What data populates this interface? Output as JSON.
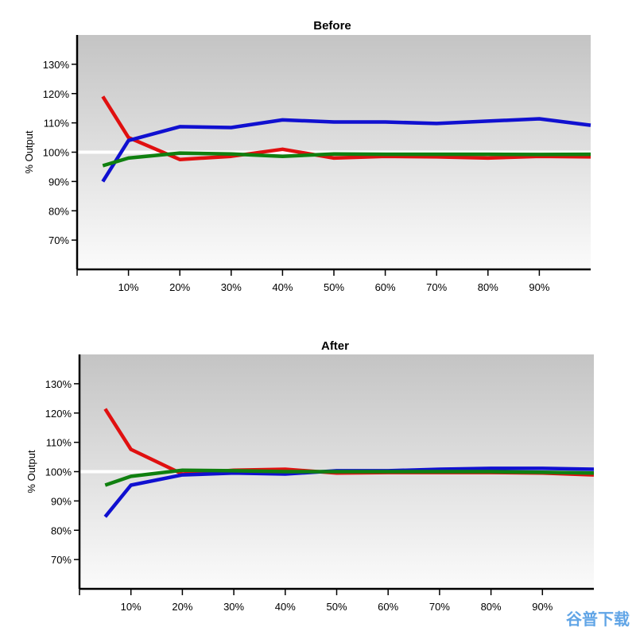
{
  "watermark": "谷普下载",
  "chart_data": [
    {
      "type": "line",
      "title": "Before",
      "ylabel": "% Output",
      "xlabel": "",
      "x": [
        5,
        10,
        20,
        30,
        40,
        50,
        60,
        70,
        80,
        90,
        100
      ],
      "xticks": [
        "10%",
        "20%",
        "30%",
        "40%",
        "50%",
        "60%",
        "70%",
        "80%",
        "90%"
      ],
      "xlim": [
        0,
        100
      ],
      "yticks": [
        "70%",
        "80%",
        "90%",
        "100%",
        "110%",
        "120%",
        "130%"
      ],
      "ylim": [
        60,
        140
      ],
      "reference_line": 100,
      "series": [
        {
          "color": "#e01010",
          "values": [
            119,
            105,
            97.5,
            98.6,
            101,
            98,
            98.6,
            98.4,
            98,
            98.6,
            98.4
          ]
        },
        {
          "color": "#1010d0",
          "values": [
            90,
            104,
            108.7,
            108.4,
            111,
            110.3,
            110.3,
            109.8,
            110.6,
            111.4,
            109.2
          ]
        },
        {
          "color": "#108010",
          "values": [
            95.4,
            98,
            99.7,
            99.4,
            98.6,
            99.4,
            99.3,
            99.3,
            99.3,
            99.2,
            99.3
          ]
        }
      ]
    },
    {
      "type": "line",
      "title": "After",
      "ylabel": "% Output",
      "xlabel": "",
      "x": [
        5,
        10,
        20,
        30,
        40,
        50,
        60,
        70,
        80,
        90,
        100
      ],
      "xticks": [
        "10%",
        "20%",
        "30%",
        "40%",
        "50%",
        "60%",
        "70%",
        "80%",
        "90%"
      ],
      "xlim": [
        0,
        100
      ],
      "yticks": [
        "70%",
        "80%",
        "90%",
        "100%",
        "110%",
        "120%",
        "130%"
      ],
      "ylim": [
        60,
        140
      ],
      "reference_line": 100,
      "series": [
        {
          "color": "#e01010",
          "values": [
            121.4,
            107.6,
            99.2,
            100.5,
            100.8,
            99.5,
            99.7,
            99.7,
            99.7,
            99.5,
            98.9
          ]
        },
        {
          "color": "#1010d0",
          "values": [
            84.6,
            95.4,
            98.9,
            99.5,
            99.2,
            100.3,
            100.3,
            100.8,
            101.1,
            101.1,
            100.8
          ]
        },
        {
          "color": "#108010",
          "values": [
            95.4,
            98.4,
            100.5,
            100.3,
            100,
            100,
            100,
            100,
            100,
            99.8,
            99.5
          ]
        }
      ]
    }
  ]
}
